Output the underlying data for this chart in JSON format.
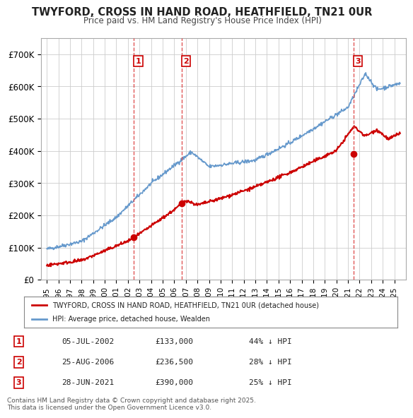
{
  "title": "TWYFORD, CROSS IN HAND ROAD, HEATHFIELD, TN21 0UR",
  "subtitle": "Price paid vs. HM Land Registry's House Price Index (HPI)",
  "ylabel": "",
  "xlabel": "",
  "ylim": [
    0,
    750000
  ],
  "xlim": [
    1994.5,
    2026
  ],
  "yticks": [
    0,
    100000,
    200000,
    300000,
    400000,
    500000,
    600000,
    700000
  ],
  "ytick_labels": [
    "£0",
    "£100K",
    "£200K",
    "£300K",
    "£400K",
    "£500K",
    "£600K",
    "£700K"
  ],
  "sale_events": [
    {
      "label": "1",
      "date_str": "05-JUL-2002",
      "year": 2002.51,
      "price": 133000
    },
    {
      "label": "2",
      "date_str": "25-AUG-2006",
      "year": 2006.65,
      "price": 236500
    },
    {
      "label": "3",
      "date_str": "28-JUN-2021",
      "year": 2021.49,
      "price": 390000
    }
  ],
  "legend_line1": "TWYFORD, CROSS IN HAND ROAD, HEATHFIELD, TN21 0UR (detached house)",
  "legend_line2": "HPI: Average price, detached house, Wealden",
  "footer": "Contains HM Land Registry data © Crown copyright and database right 2025.\nThis data is licensed under the Open Government Licence v3.0.",
  "table_rows": [
    [
      "1",
      "05-JUL-2002",
      "£133,000",
      "44% ↓ HPI"
    ],
    [
      "2",
      "25-AUG-2006",
      "£236,500",
      "28% ↓ HPI"
    ],
    [
      "3",
      "28-JUN-2021",
      "£390,000",
      "25% ↓ HPI"
    ]
  ],
  "line_color_red": "#cc0000",
  "line_color_blue": "#6699cc",
  "marker_color": "#cc0000",
  "dashed_color": "#dd4444",
  "background_color": "#ffffff",
  "grid_color": "#cccccc"
}
